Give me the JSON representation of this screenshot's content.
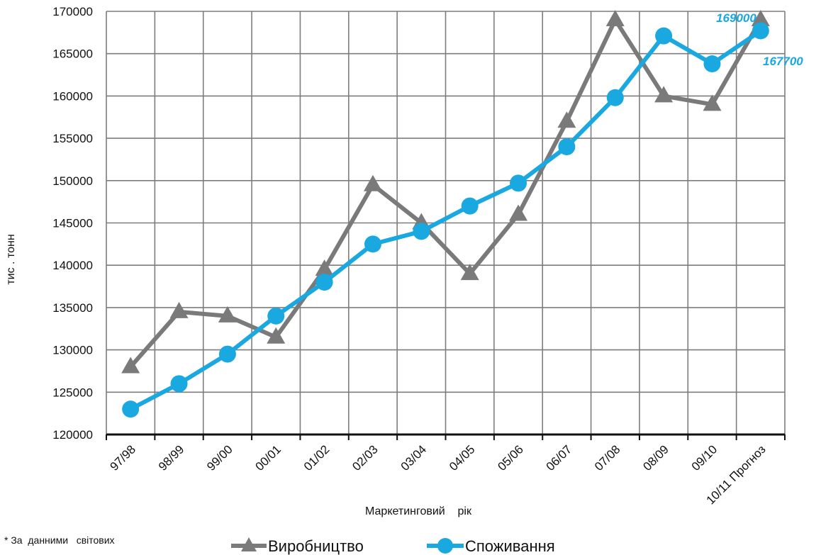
{
  "chart_data": {
    "type": "line",
    "categories": [
      "97/98",
      "98/99",
      "99/00",
      "00/01",
      "01/02",
      "02/03",
      "03/04",
      "04/05",
      "05/06",
      "06/07",
      "07/08",
      "08/09",
      "09/10",
      "10/11 Прогноз"
    ],
    "series": [
      {
        "name": "Виробництво",
        "color": "#7a7a7a",
        "marker": "triangle",
        "values": [
          128000,
          134500,
          134000,
          131500,
          139500,
          149500,
          145000,
          139000,
          146000,
          157000,
          169000,
          160000,
          159000,
          169000
        ]
      },
      {
        "name": "Споживання",
        "color": "#1aa8e0",
        "marker": "circle",
        "values": [
          123000,
          126000,
          129500,
          134000,
          138000,
          142500,
          144000,
          147000,
          149700,
          154000,
          159800,
          167100,
          163800,
          167700
        ]
      }
    ],
    "ylabel": "тис . тонн",
    "xlabel": "Маркетинговий    рік",
    "ylim": [
      120000,
      170000
    ],
    "yticks": [
      120000,
      125000,
      130000,
      135000,
      140000,
      145000,
      150000,
      155000,
      160000,
      165000,
      170000
    ],
    "grid": true,
    "annotations": [
      {
        "text": "169000",
        "series": "Виробництво",
        "category": "10/11 Прогноз"
      },
      {
        "text": "167700",
        "series": "Споживання",
        "category": "10/11 Прогноз"
      }
    ],
    "legend": {
      "position": "bottom",
      "items": [
        "Виробництво",
        "Споживання"
      ]
    },
    "footnote": "* За  данними   світових"
  }
}
